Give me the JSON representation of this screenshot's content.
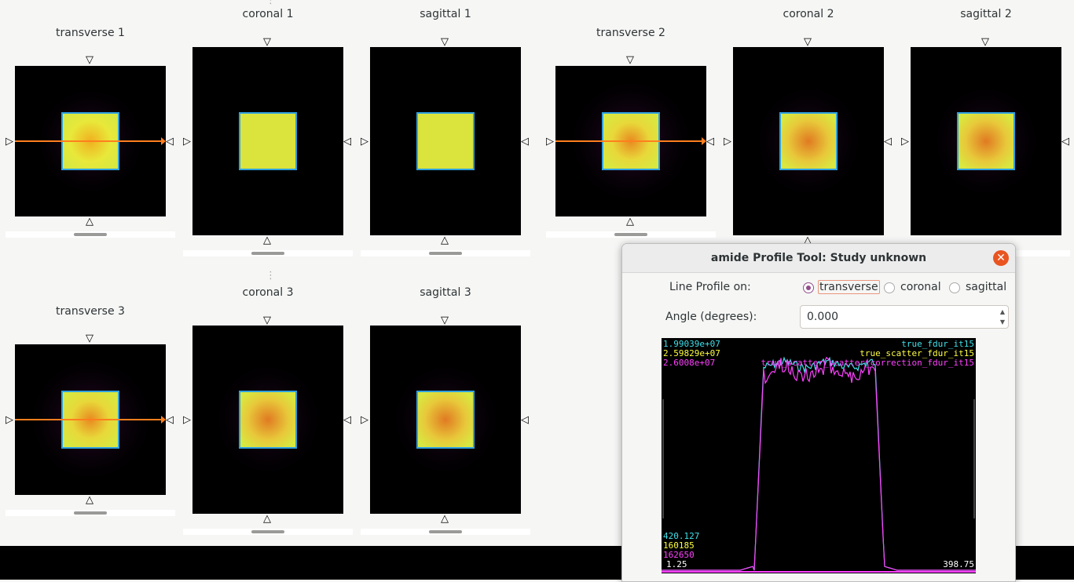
{
  "views": [
    {
      "title": "transverse 1"
    },
    {
      "title": "coronal 1"
    },
    {
      "title": "sagittal 1"
    },
    {
      "title": "transverse 2"
    },
    {
      "title": "coronal 2"
    },
    {
      "title": "sagittal 2"
    },
    {
      "title": "transverse 3"
    },
    {
      "title": "coronal 3"
    },
    {
      "title": "sagittal 3"
    }
  ],
  "dialog": {
    "title": "amide Profile Tool: Study unknown",
    "close_icon": "close-icon",
    "line_profile_label": "Line Profile on:",
    "options": [
      "transverse",
      "coronal",
      "sagittal"
    ],
    "selected": "transverse",
    "angle_label": "Angle (degrees):",
    "angle_value": "0.000"
  },
  "profile_plot": {
    "max_values": [
      "1.99039e+07",
      "2.59829e+07",
      "2.6008e+07"
    ],
    "series_names": [
      "true_fdur_it15",
      "true_scatter_fdur_it15",
      "true_scatter_scatter_correction_fdur_it15"
    ],
    "min_values": [
      "420.127",
      "160185",
      "162650"
    ],
    "x_start": "1.25",
    "x_end": "398.75",
    "colors": [
      "#40e0e8",
      "#ffff40",
      "#ff40ff"
    ]
  },
  "chart_data": {
    "type": "line",
    "xlim": [
      1.25,
      398.75
    ],
    "series": [
      {
        "name": "true_fdur_it15",
        "min": 420.127,
        "max": 19903900,
        "color": "#40e0e8"
      },
      {
        "name": "true_scatter_fdur_it15",
        "min": 160185,
        "max": 25982900,
        "color": "#ffff40"
      },
      {
        "name": "true_scatter_scatter_correction_fdur_it15",
        "min": 162650,
        "max": 26008000,
        "color": "#ff40ff"
      }
    ]
  }
}
